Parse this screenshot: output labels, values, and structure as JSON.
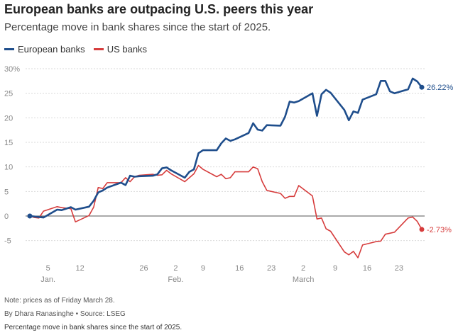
{
  "chart_data": {
    "type": "line",
    "title": "European banks are outpacing U.S. peers this year",
    "subtitle": "Percentage move in bank shares since the start of 2025.",
    "xlabel": "",
    "ylabel": "",
    "x_start": "2025-01-01",
    "xlim": [
      0,
      90
    ],
    "ylim": [
      -8,
      30
    ],
    "yticks": [
      -5,
      0,
      5,
      10,
      15,
      20,
      25,
      30
    ],
    "ytick_labels": [
      "-5",
      "0",
      "5",
      "10",
      "15",
      "20",
      "25",
      "30%"
    ],
    "xticks": [
      4,
      11,
      25,
      32,
      38,
      46,
      53,
      60,
      67,
      74,
      81
    ],
    "xtick_labels": [
      "5",
      "12",
      "26",
      "2",
      "9",
      "16",
      "23",
      "2",
      "9",
      "16",
      "23"
    ],
    "month_labels": [
      {
        "label": "Jan.",
        "day": 4
      },
      {
        "label": "Feb.",
        "day": 32
      },
      {
        "label": "March",
        "day": 60
      }
    ],
    "grid": true,
    "legend_position": "top-left",
    "series": [
      {
        "name": "European banks",
        "color": "#1f4e8c",
        "end_label": "26.22%",
        "x": [
          0,
          1,
          2,
          3,
          6,
          7,
          8,
          9,
          10,
          13,
          14,
          15,
          16,
          17,
          20,
          21,
          22,
          23,
          24,
          27,
          28,
          29,
          30,
          31,
          34,
          35,
          36,
          37,
          38,
          41,
          42,
          43,
          44,
          45,
          48,
          49,
          50,
          51,
          52,
          55,
          56,
          57,
          58,
          59,
          62,
          63,
          64,
          65,
          66,
          69,
          70,
          71,
          72,
          73,
          76,
          77,
          78,
          79,
          80,
          83,
          84,
          85,
          86
        ],
        "y": [
          0.0,
          -0.1,
          -0.2,
          -0.3,
          1.3,
          1.2,
          1.5,
          1.8,
          1.3,
          1.9,
          3.1,
          4.8,
          5.2,
          5.8,
          6.8,
          6.3,
          8.2,
          8.0,
          8.1,
          8.2,
          8.5,
          9.7,
          9.9,
          9.3,
          7.8,
          9.0,
          9.5,
          12.8,
          13.4,
          13.4,
          14.8,
          15.8,
          15.3,
          15.6,
          16.9,
          18.9,
          17.6,
          17.4,
          18.5,
          18.4,
          20.2,
          23.3,
          23.1,
          23.4,
          25.0,
          20.4,
          24.8,
          25.7,
          25.1,
          21.6,
          19.5,
          21.3,
          21.0,
          23.7,
          24.8,
          27.5,
          27.5,
          25.4,
          25.0,
          25.8,
          28.0,
          27.4,
          26.22
        ]
      },
      {
        "name": "US banks",
        "color": "#d63c3c",
        "end_label": "-2.73%",
        "x": [
          0,
          1,
          2,
          3,
          6,
          7,
          8,
          9,
          10,
          13,
          14,
          15,
          16,
          17,
          20,
          21,
          22,
          23,
          24,
          27,
          28,
          29,
          30,
          31,
          34,
          35,
          36,
          37,
          38,
          41,
          42,
          43,
          44,
          45,
          48,
          49,
          50,
          51,
          52,
          55,
          56,
          57,
          58,
          59,
          62,
          63,
          64,
          65,
          66,
          69,
          70,
          71,
          72,
          73,
          76,
          77,
          78,
          79,
          80,
          83,
          84,
          85,
          86
        ],
        "y": [
          0.0,
          -0.3,
          -0.4,
          1.0,
          1.9,
          1.7,
          1.6,
          1.5,
          -1.2,
          0.1,
          1.8,
          5.8,
          5.6,
          6.8,
          6.8,
          7.8,
          7.0,
          8.0,
          8.3,
          8.5,
          8.3,
          8.4,
          9.3,
          8.6,
          7.0,
          7.8,
          8.6,
          10.3,
          9.5,
          8.0,
          8.5,
          7.6,
          7.8,
          9.0,
          9.0,
          10.0,
          9.6,
          7.0,
          5.2,
          4.6,
          3.6,
          4.0,
          4.0,
          6.2,
          4.1,
          -0.6,
          -0.4,
          -2.6,
          -3.1,
          -7.3,
          -7.9,
          -7.2,
          -8.5,
          -5.9,
          -5.2,
          -5.1,
          -3.7,
          -3.5,
          -3.3,
          -0.4,
          -0.2,
          -1.1,
          -2.73
        ]
      }
    ]
  },
  "footer": {
    "note": "Note: prices as of Friday March 28.",
    "byline": "By Dhara Ranasinghe • Source: LSEG",
    "caption": "Percentage move in bank shares since the start of 2025."
  }
}
